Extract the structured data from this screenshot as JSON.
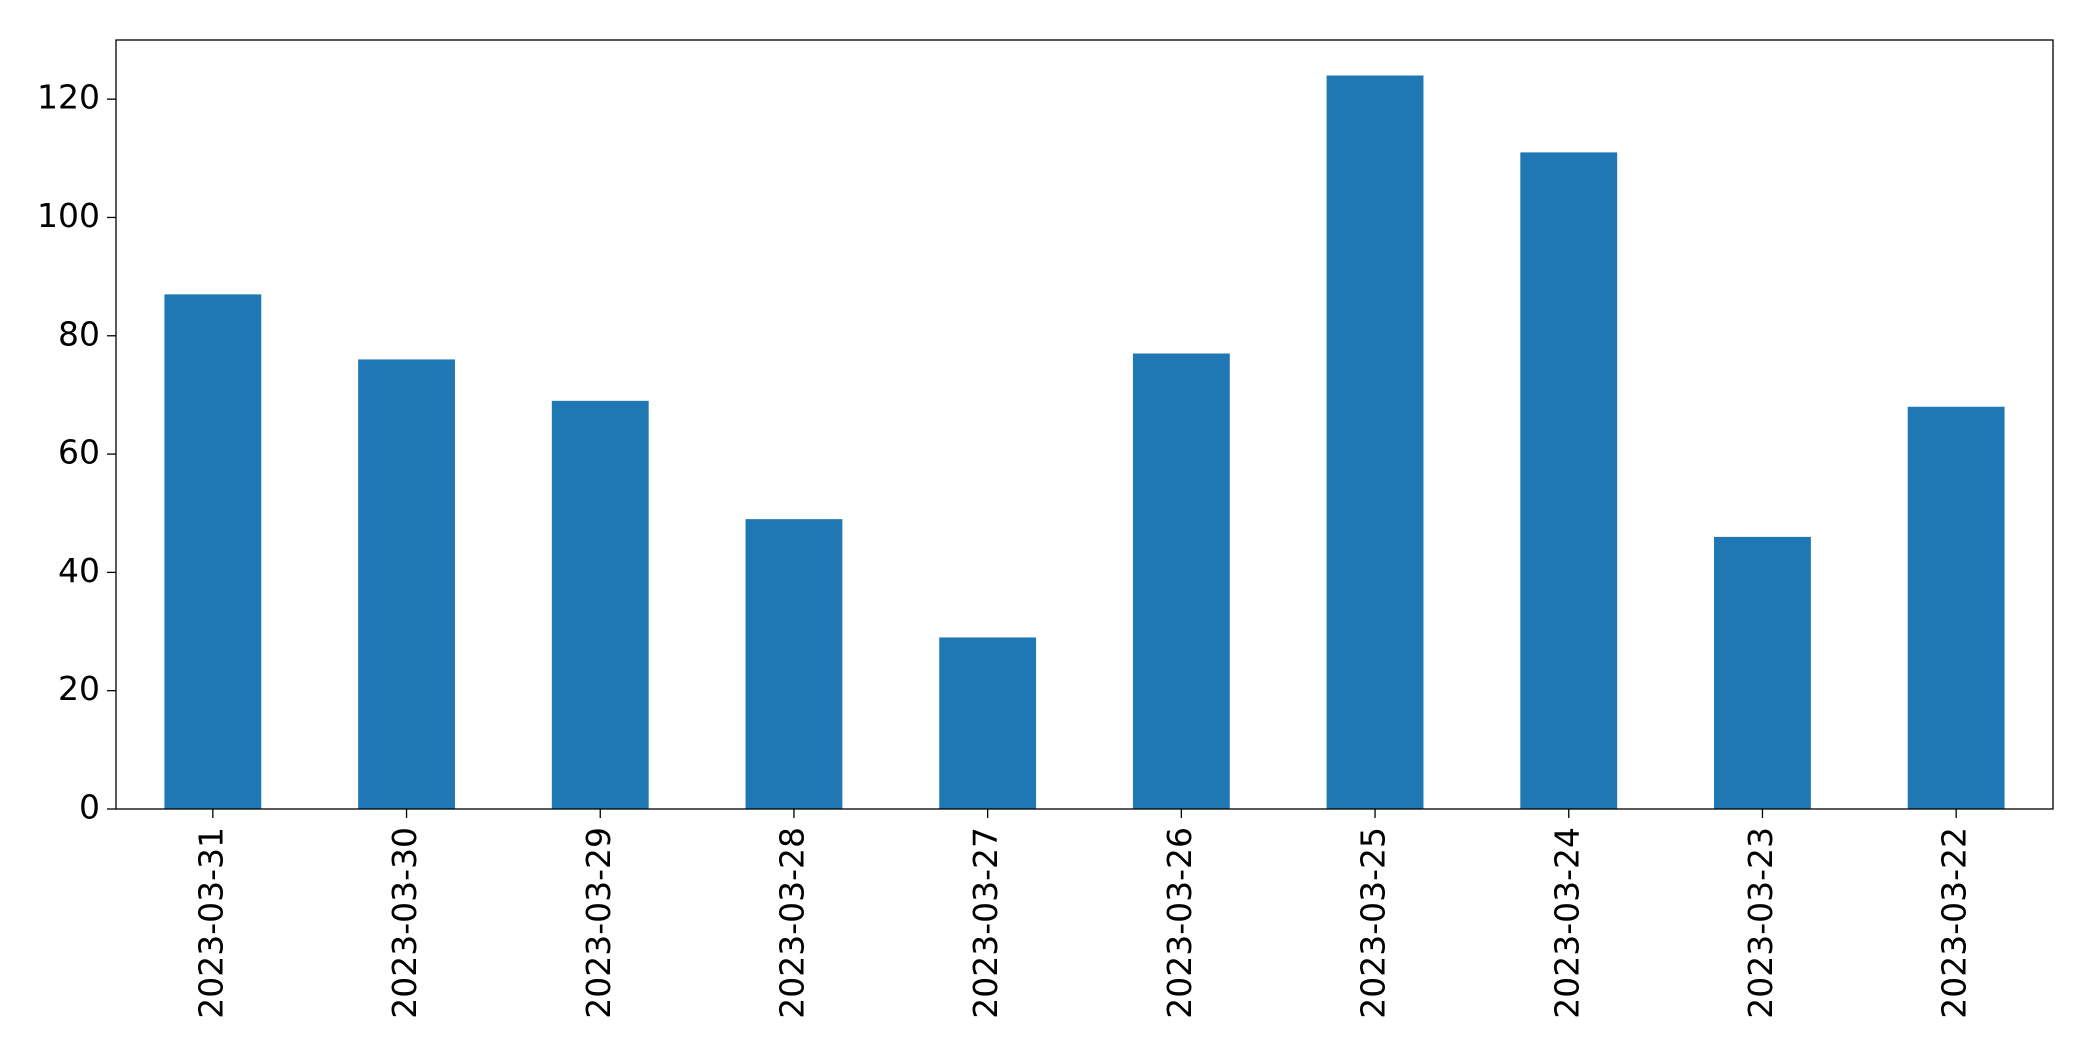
{
  "chart_data": {
    "type": "bar",
    "categories": [
      "2023-03-31",
      "2023-03-30",
      "2023-03-29",
      "2023-03-28",
      "2023-03-27",
      "2023-03-26",
      "2023-03-25",
      "2023-03-24",
      "2023-03-23",
      "2023-03-22"
    ],
    "values": [
      87,
      76,
      69,
      49,
      29,
      77,
      124,
      111,
      46,
      68
    ],
    "color": "#1f77b4",
    "ylim": [
      0,
      130
    ],
    "yticks": [
      0,
      20,
      40,
      60,
      80,
      100,
      120
    ],
    "grid": false
  }
}
